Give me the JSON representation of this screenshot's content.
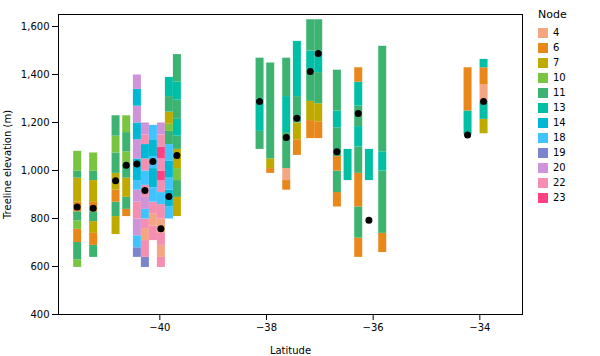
{
  "chart_data": {
    "type": "bar",
    "xlabel": "Latitude",
    "ylabel": "Treeline elevation (m)",
    "xlim": [
      -41.9,
      -33.2
    ],
    "ylim": [
      400,
      1650
    ],
    "xticks": [
      -40,
      -38,
      -36,
      -34
    ],
    "yticks": [
      400,
      600,
      800,
      1000,
      1200,
      1400,
      1600
    ],
    "legend": "upper right",
    "legend_title": "Node",
    "dot_color": "black",
    "series": [
      {
        "name": "4",
        "color": "#F4A582"
      },
      {
        "name": "6",
        "color": "#E8871A"
      },
      {
        "name": "7",
        "color": "#BFAB00"
      },
      {
        "name": "10",
        "color": "#79C540"
      },
      {
        "name": "11",
        "color": "#3CB371"
      },
      {
        "name": "13",
        "color": "#00BFA5"
      },
      {
        "name": "14",
        "color": "#00B8D4"
      },
      {
        "name": "18",
        "color": "#40C4FF"
      },
      {
        "name": "19",
        "color": "#7986CB"
      },
      {
        "name": "20",
        "color": "#CE93D8"
      },
      {
        "name": "22",
        "color": "#F48FB1"
      },
      {
        "name": "23",
        "color": "#FF4081"
      }
    ],
    "columns": [
      {
        "x": -41.55,
        "dot": 848,
        "segments": [
          {
            "series": "10",
            "bottom": 596,
            "top": 628
          },
          {
            "series": "11",
            "bottom": 628,
            "top": 700
          },
          {
            "series": "6",
            "bottom": 700,
            "top": 755
          },
          {
            "series": "10",
            "bottom": 755,
            "top": 790
          },
          {
            "series": "11",
            "bottom": 790,
            "top": 828
          },
          {
            "series": "6",
            "bottom": 828,
            "top": 868
          },
          {
            "series": "7",
            "bottom": 868,
            "top": 968
          },
          {
            "series": "11",
            "bottom": 968,
            "top": 997
          },
          {
            "series": "10",
            "bottom": 997,
            "top": 1080
          }
        ]
      },
      {
        "x": -41.25,
        "dot": 843,
        "segments": [
          {
            "series": "11",
            "bottom": 638,
            "top": 688
          },
          {
            "series": "6",
            "bottom": 688,
            "top": 738
          },
          {
            "series": "7",
            "bottom": 738,
            "top": 787
          },
          {
            "series": "11",
            "bottom": 787,
            "top": 828
          },
          {
            "series": "6",
            "bottom": 828,
            "top": 867
          },
          {
            "series": "7",
            "bottom": 867,
            "top": 958
          },
          {
            "series": "11",
            "bottom": 958,
            "top": 997
          },
          {
            "series": "10",
            "bottom": 997,
            "top": 1073
          }
        ]
      },
      {
        "x": -40.83,
        "dot": 957,
        "segments": [
          {
            "series": "7",
            "bottom": 733,
            "top": 808
          },
          {
            "series": "11",
            "bottom": 808,
            "top": 868
          },
          {
            "series": "6",
            "bottom": 868,
            "top": 918
          },
          {
            "series": "7",
            "bottom": 918,
            "top": 988
          },
          {
            "series": "11",
            "bottom": 988,
            "top": 1073
          },
          {
            "series": "10",
            "bottom": 1073,
            "top": 1143
          },
          {
            "series": "11",
            "bottom": 1143,
            "top": 1228
          }
        ]
      },
      {
        "x": -40.63,
        "dot": 1022,
        "segments": [
          {
            "series": "6",
            "bottom": 808,
            "top": 838
          },
          {
            "series": "11",
            "bottom": 838,
            "top": 888
          },
          {
            "series": "7",
            "bottom": 888,
            "top": 968
          },
          {
            "series": "11",
            "bottom": 968,
            "top": 1028
          },
          {
            "series": "10",
            "bottom": 1028,
            "top": 1078
          },
          {
            "series": "11",
            "bottom": 1078,
            "top": 1158
          },
          {
            "series": "10",
            "bottom": 1158,
            "top": 1228
          }
        ]
      },
      {
        "x": -40.43,
        "dot": 1027,
        "segments": [
          {
            "series": "19",
            "bottom": 638,
            "top": 678
          },
          {
            "series": "18",
            "bottom": 678,
            "top": 728
          },
          {
            "series": "20",
            "bottom": 728,
            "top": 798
          },
          {
            "series": "22",
            "bottom": 798,
            "top": 868
          },
          {
            "series": "20",
            "bottom": 868,
            "top": 918
          },
          {
            "series": "18",
            "bottom": 918,
            "top": 958
          },
          {
            "series": "14",
            "bottom": 958,
            "top": 1048
          },
          {
            "series": "20",
            "bottom": 1048,
            "top": 1128
          },
          {
            "series": "14",
            "bottom": 1128,
            "top": 1198
          },
          {
            "series": "20",
            "bottom": 1198,
            "top": 1268
          },
          {
            "series": "14",
            "bottom": 1268,
            "top": 1338
          },
          {
            "series": "20",
            "bottom": 1338,
            "top": 1398
          }
        ]
      },
      {
        "x": -40.28,
        "dot": 917,
        "segments": [
          {
            "series": "19",
            "bottom": 596,
            "top": 638
          },
          {
            "series": "22",
            "bottom": 638,
            "top": 708
          },
          {
            "series": "4",
            "bottom": 708,
            "top": 758
          },
          {
            "series": "22",
            "bottom": 758,
            "top": 798
          },
          {
            "series": "18",
            "bottom": 798,
            "top": 838
          },
          {
            "series": "20",
            "bottom": 838,
            "top": 888
          },
          {
            "series": "22",
            "bottom": 888,
            "top": 938
          },
          {
            "series": "18",
            "bottom": 938,
            "top": 998
          },
          {
            "series": "22",
            "bottom": 998,
            "top": 1048
          },
          {
            "series": "14",
            "bottom": 1048,
            "top": 1108
          },
          {
            "series": "22",
            "bottom": 1108,
            "top": 1148
          },
          {
            "series": "20",
            "bottom": 1148,
            "top": 1198
          }
        ]
      },
      {
        "x": -40.13,
        "dot": 1037,
        "segments": [
          {
            "series": "22",
            "bottom": 708,
            "top": 768
          },
          {
            "series": "4",
            "bottom": 768,
            "top": 818
          },
          {
            "series": "22",
            "bottom": 818,
            "top": 868
          },
          {
            "series": "18",
            "bottom": 868,
            "top": 928
          },
          {
            "series": "14",
            "bottom": 928,
            "top": 1008
          },
          {
            "series": "18",
            "bottom": 1008,
            "top": 1058
          },
          {
            "series": "14",
            "bottom": 1058,
            "top": 1128
          },
          {
            "series": "18",
            "bottom": 1128,
            "top": 1188
          }
        ]
      },
      {
        "x": -39.98,
        "dot": 757,
        "segments": [
          {
            "series": "22",
            "bottom": 596,
            "top": 638
          },
          {
            "series": "4",
            "bottom": 638,
            "top": 688
          },
          {
            "series": "22",
            "bottom": 688,
            "top": 738
          },
          {
            "series": "4",
            "bottom": 738,
            "top": 798
          },
          {
            "series": "22",
            "bottom": 798,
            "top": 858
          },
          {
            "series": "18",
            "bottom": 858,
            "top": 908
          },
          {
            "series": "22",
            "bottom": 908,
            "top": 958
          },
          {
            "series": "23",
            "bottom": 958,
            "top": 998
          },
          {
            "series": "22",
            "bottom": 998,
            "top": 1048
          },
          {
            "series": "23",
            "bottom": 1048,
            "top": 1098
          },
          {
            "series": "22",
            "bottom": 1098,
            "top": 1148
          },
          {
            "series": "20",
            "bottom": 1148,
            "top": 1198
          }
        ]
      },
      {
        "x": -39.83,
        "dot": 892,
        "segments": [
          {
            "series": "18",
            "bottom": 798,
            "top": 848
          },
          {
            "series": "14",
            "bottom": 848,
            "top": 918
          },
          {
            "series": "18",
            "bottom": 918,
            "top": 968
          },
          {
            "series": "14",
            "bottom": 968,
            "top": 1038
          },
          {
            "series": "18",
            "bottom": 1038,
            "top": 1108
          },
          {
            "series": "11",
            "bottom": 1108,
            "top": 1163
          },
          {
            "series": "10",
            "bottom": 1163,
            "top": 1193
          },
          {
            "series": "7",
            "bottom": 1193,
            "top": 1243
          },
          {
            "series": "11",
            "bottom": 1243,
            "top": 1308
          },
          {
            "series": "13",
            "bottom": 1308,
            "top": 1388
          }
        ]
      },
      {
        "x": -39.68,
        "dot": 1062,
        "segments": [
          {
            "series": "7",
            "bottom": 808,
            "top": 888
          },
          {
            "series": "11",
            "bottom": 888,
            "top": 958
          },
          {
            "series": "10",
            "bottom": 958,
            "top": 1008
          },
          {
            "series": "7",
            "bottom": 1008,
            "top": 1088
          },
          {
            "series": "11",
            "bottom": 1088,
            "top": 1143
          },
          {
            "series": "13",
            "bottom": 1143,
            "top": 1213
          },
          {
            "series": "11",
            "bottom": 1213,
            "top": 1293
          },
          {
            "series": "13",
            "bottom": 1293,
            "top": 1368
          },
          {
            "series": "11",
            "bottom": 1368,
            "top": 1483
          }
        ]
      },
      {
        "x": -38.13,
        "dot": 1288,
        "segments": [
          {
            "series": "11",
            "bottom": 1088,
            "top": 1163
          },
          {
            "series": "13",
            "bottom": 1163,
            "top": 1298
          },
          {
            "series": "11",
            "bottom": 1298,
            "top": 1468
          }
        ]
      },
      {
        "x": -37.93,
        "dot": null,
        "segments": [
          {
            "series": "6",
            "bottom": 988,
            "top": 1008
          },
          {
            "series": "7",
            "bottom": 1008,
            "top": 1048
          },
          {
            "series": "11",
            "bottom": 1048,
            "top": 1448
          }
        ]
      },
      {
        "x": -37.63,
        "dot": 1138,
        "segments": [
          {
            "series": "6",
            "bottom": 918,
            "top": 958
          },
          {
            "series": "4",
            "bottom": 958,
            "top": 1008
          },
          {
            "series": "11",
            "bottom": 1008,
            "top": 1158
          },
          {
            "series": "13",
            "bottom": 1158,
            "top": 1308
          },
          {
            "series": "11",
            "bottom": 1308,
            "top": 1468
          }
        ]
      },
      {
        "x": -37.43,
        "dot": 1218,
        "segments": [
          {
            "series": "6",
            "bottom": 1063,
            "top": 1128
          },
          {
            "series": "7",
            "bottom": 1128,
            "top": 1198
          },
          {
            "series": "11",
            "bottom": 1198,
            "top": 1308
          },
          {
            "series": "13",
            "bottom": 1308,
            "top": 1538
          }
        ]
      },
      {
        "x": -37.18,
        "dot": 1413,
        "segments": [
          {
            "series": "6",
            "bottom": 1133,
            "top": 1208
          },
          {
            "series": "7",
            "bottom": 1208,
            "top": 1288
          },
          {
            "series": "11",
            "bottom": 1288,
            "top": 1418
          },
          {
            "series": "13",
            "bottom": 1418,
            "top": 1498
          },
          {
            "series": "11",
            "bottom": 1498,
            "top": 1628
          }
        ]
      },
      {
        "x": -37.03,
        "dot": 1488,
        "segments": [
          {
            "series": "6",
            "bottom": 1133,
            "top": 1203
          },
          {
            "series": "7",
            "bottom": 1203,
            "top": 1278
          },
          {
            "series": "11",
            "bottom": 1278,
            "top": 1408
          },
          {
            "series": "13",
            "bottom": 1408,
            "top": 1498
          },
          {
            "series": "11",
            "bottom": 1498,
            "top": 1628
          }
        ]
      },
      {
        "x": -36.68,
        "dot": 1078,
        "segments": [
          {
            "series": "6",
            "bottom": 848,
            "top": 908
          },
          {
            "series": "11",
            "bottom": 908,
            "top": 998
          },
          {
            "series": "6",
            "bottom": 998,
            "top": 1058
          },
          {
            "series": "11",
            "bottom": 1058,
            "top": 1178
          },
          {
            "series": "13",
            "bottom": 1178,
            "top": 1248
          },
          {
            "series": "11",
            "bottom": 1248,
            "top": 1418
          }
        ]
      },
      {
        "x": -36.48,
        "dot": null,
        "segments": [
          {
            "series": "13",
            "bottom": 958,
            "top": 1088
          }
        ]
      },
      {
        "x": -36.28,
        "dot": 1238,
        "segments": [
          {
            "series": "6",
            "bottom": 638,
            "top": 718
          },
          {
            "series": "11",
            "bottom": 718,
            "top": 848
          },
          {
            "series": "6",
            "bottom": 848,
            "top": 988
          },
          {
            "series": "11",
            "bottom": 988,
            "top": 1098
          },
          {
            "series": "13",
            "bottom": 1098,
            "top": 1183
          },
          {
            "series": "11",
            "bottom": 1183,
            "top": 1268
          },
          {
            "series": "13",
            "bottom": 1268,
            "top": 1368
          },
          {
            "series": "6",
            "bottom": 1368,
            "top": 1428
          }
        ]
      },
      {
        "x": -36.08,
        "dot": 793,
        "segments": [
          {
            "series": "13",
            "bottom": 958,
            "top": 1088
          }
        ]
      },
      {
        "x": -35.83,
        "dot": null,
        "segments": [
          {
            "series": "6",
            "bottom": 658,
            "top": 738
          },
          {
            "series": "11",
            "bottom": 738,
            "top": 998
          },
          {
            "series": "13",
            "bottom": 998,
            "top": 1078
          },
          {
            "series": "11",
            "bottom": 1078,
            "top": 1518
          }
        ]
      },
      {
        "x": -34.23,
        "dot": 1148,
        "segments": [
          {
            "series": "13",
            "bottom": 1148,
            "top": 1248
          },
          {
            "series": "6",
            "bottom": 1248,
            "top": 1428
          }
        ]
      },
      {
        "x": -33.93,
        "dot": 1288,
        "segments": [
          {
            "series": "7",
            "bottom": 1153,
            "top": 1213
          },
          {
            "series": "13",
            "bottom": 1213,
            "top": 1288
          },
          {
            "series": "4",
            "bottom": 1288,
            "top": 1358
          },
          {
            "series": "6",
            "bottom": 1358,
            "top": 1428
          },
          {
            "series": "13",
            "bottom": 1428,
            "top": 1463
          }
        ]
      }
    ]
  }
}
